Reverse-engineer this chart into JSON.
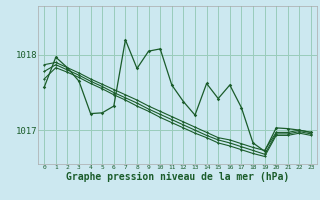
{
  "background_color": "#cce8f0",
  "grid_color": "#99ccbb",
  "line_color": "#1a5c2a",
  "xlabel": "Graphe pression niveau de la mer (hPa)",
  "xlabel_fontsize": 7,
  "yticks": [
    1017,
    1018
  ],
  "ylim": [
    1016.55,
    1018.65
  ],
  "xlim": [
    -0.5,
    23.5
  ],
  "figsize": [
    3.2,
    2.0
  ],
  "dpi": 100,
  "s_main": [
    1017.57,
    1017.97,
    1017.83,
    1017.65,
    1017.22,
    1017.23,
    1017.32,
    1018.2,
    1017.82,
    1018.05,
    1018.08,
    1017.6,
    1017.38,
    1017.2,
    1017.62,
    1017.42,
    1017.6,
    1017.3,
    1016.83,
    1016.72,
    1017.03,
    1017.02,
    1017.0,
    1016.97
  ],
  "s_smooth1": [
    1017.87,
    1017.9,
    1017.83,
    1017.76,
    1017.68,
    1017.61,
    1017.54,
    1017.47,
    1017.4,
    1017.32,
    1017.25,
    1017.18,
    1017.11,
    1017.04,
    1016.97,
    1016.9,
    1016.87,
    1016.82,
    1016.77,
    1016.73,
    1016.97,
    1016.97,
    1017.0,
    1016.97
  ],
  "s_smooth2": [
    1017.78,
    1017.87,
    1017.8,
    1017.73,
    1017.65,
    1017.58,
    1017.5,
    1017.43,
    1017.36,
    1017.28,
    1017.21,
    1017.14,
    1017.07,
    1017.0,
    1016.93,
    1016.87,
    1016.83,
    1016.78,
    1016.73,
    1016.68,
    1016.95,
    1016.95,
    1016.98,
    1016.95
  ],
  "s_smooth3": [
    1017.68,
    1017.83,
    1017.77,
    1017.7,
    1017.62,
    1017.55,
    1017.47,
    1017.4,
    1017.32,
    1017.25,
    1017.17,
    1017.1,
    1017.03,
    1016.96,
    1016.9,
    1016.83,
    1016.79,
    1016.74,
    1016.69,
    1016.65,
    1016.93,
    1016.93,
    1016.96,
    1016.93
  ]
}
